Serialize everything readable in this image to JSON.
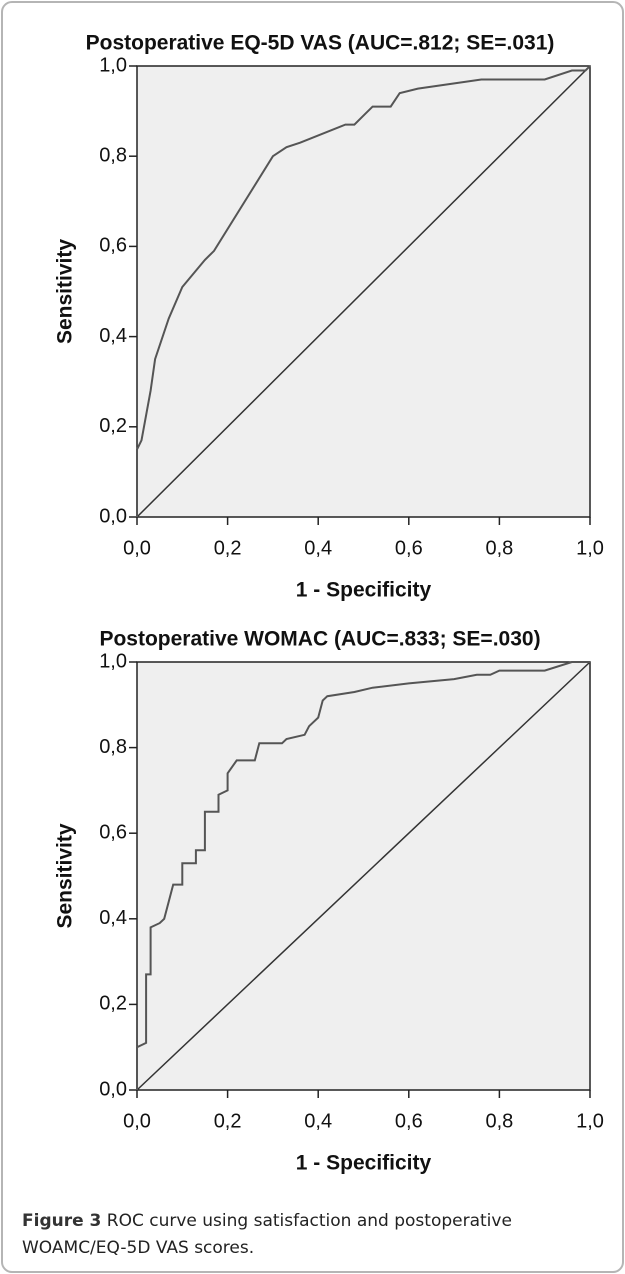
{
  "chart_data": [
    {
      "type": "line",
      "title": "Postoperative EQ-5D VAS (AUC=.812; SE=.031)",
      "x_label": "1 - Specificity",
      "y_label": "Sensitivity",
      "x": [
        0,
        0,
        0.01,
        0.03,
        0.04,
        0.07,
        0.1,
        0.15,
        0.17,
        0.3,
        0.33,
        0.36,
        0.46,
        0.48,
        0.5,
        0.52,
        0.56,
        0.58,
        0.62,
        0.76,
        0.9,
        0.96,
        0.99,
        1
      ],
      "values": [
        0,
        0.15,
        0.17,
        0.28,
        0.35,
        0.44,
        0.51,
        0.57,
        0.59,
        0.8,
        0.82,
        0.83,
        0.87,
        0.87,
        0.89,
        0.91,
        0.91,
        0.94,
        0.95,
        0.97,
        0.97,
        0.99,
        0.99,
        1
      ],
      "color": "#555555",
      "xlim": [
        0,
        1
      ],
      "ylim": [
        0,
        1
      ],
      "xticks": [
        {
          "value": 0,
          "label": "0,0"
        },
        {
          "value": 0.2,
          "label": "0,2"
        },
        {
          "value": 0.4,
          "label": "0,4"
        },
        {
          "value": 0.6,
          "label": "0,6"
        },
        {
          "value": 0.8,
          "label": "0,8"
        },
        {
          "value": 1,
          "label": "1,0"
        }
      ],
      "yticks": [
        {
          "value": 0,
          "label": "0,0"
        },
        {
          "value": 0.2,
          "label": "0,2"
        },
        {
          "value": 0.4,
          "label": "0,4"
        },
        {
          "value": 0.6,
          "label": "0,6"
        },
        {
          "value": 0.8,
          "label": "0,8"
        },
        {
          "value": 1,
          "label": "1,0"
        }
      ]
    },
    {
      "type": "line",
      "title": "Postoperative WOMAC (AUC=.833; SE=.030)",
      "x_label": "1 - Specificity",
      "y_label": "Sensitivity",
      "x": [
        0,
        0,
        0.02,
        0.02,
        0.03,
        0.03,
        0.05,
        0.06,
        0.07,
        0.08,
        0.1,
        0.1,
        0.13,
        0.13,
        0.15,
        0.15,
        0.18,
        0.18,
        0.2,
        0.2,
        0.22,
        0.26,
        0.27,
        0.32,
        0.33,
        0.37,
        0.38,
        0.4,
        0.41,
        0.42,
        0.48,
        0.52,
        0.6,
        0.7,
        0.75,
        0.78,
        0.8,
        0.9,
        0.96,
        1
      ],
      "values": [
        0,
        0.1,
        0.11,
        0.27,
        0.27,
        0.38,
        0.39,
        0.4,
        0.44,
        0.48,
        0.48,
        0.53,
        0.53,
        0.56,
        0.56,
        0.65,
        0.65,
        0.69,
        0.7,
        0.74,
        0.77,
        0.77,
        0.81,
        0.81,
        0.82,
        0.83,
        0.85,
        0.87,
        0.91,
        0.92,
        0.93,
        0.94,
        0.95,
        0.96,
        0.97,
        0.97,
        0.98,
        0.98,
        1,
        1
      ],
      "color": "#555555",
      "xlim": [
        0,
        1
      ],
      "ylim": [
        0,
        1
      ],
      "xticks": [
        {
          "value": 0,
          "label": "0,0"
        },
        {
          "value": 0.2,
          "label": "0,2"
        },
        {
          "value": 0.4,
          "label": "0,4"
        },
        {
          "value": 0.6,
          "label": "0,6"
        },
        {
          "value": 0.8,
          "label": "0,8"
        },
        {
          "value": 1,
          "label": "1,0"
        }
      ],
      "yticks": [
        {
          "value": 0,
          "label": "0,0"
        },
        {
          "value": 0.2,
          "label": "0,2"
        },
        {
          "value": 0.4,
          "label": "0,4"
        },
        {
          "value": 0.6,
          "label": "0,6"
        },
        {
          "value": 0.8,
          "label": "0,8"
        },
        {
          "value": 1,
          "label": "1,0"
        }
      ]
    }
  ],
  "caption": {
    "label": "Figure 3",
    "text": "ROC curve using satisfaction and postoperative WOAMC/EQ-5D VAS scores."
  }
}
